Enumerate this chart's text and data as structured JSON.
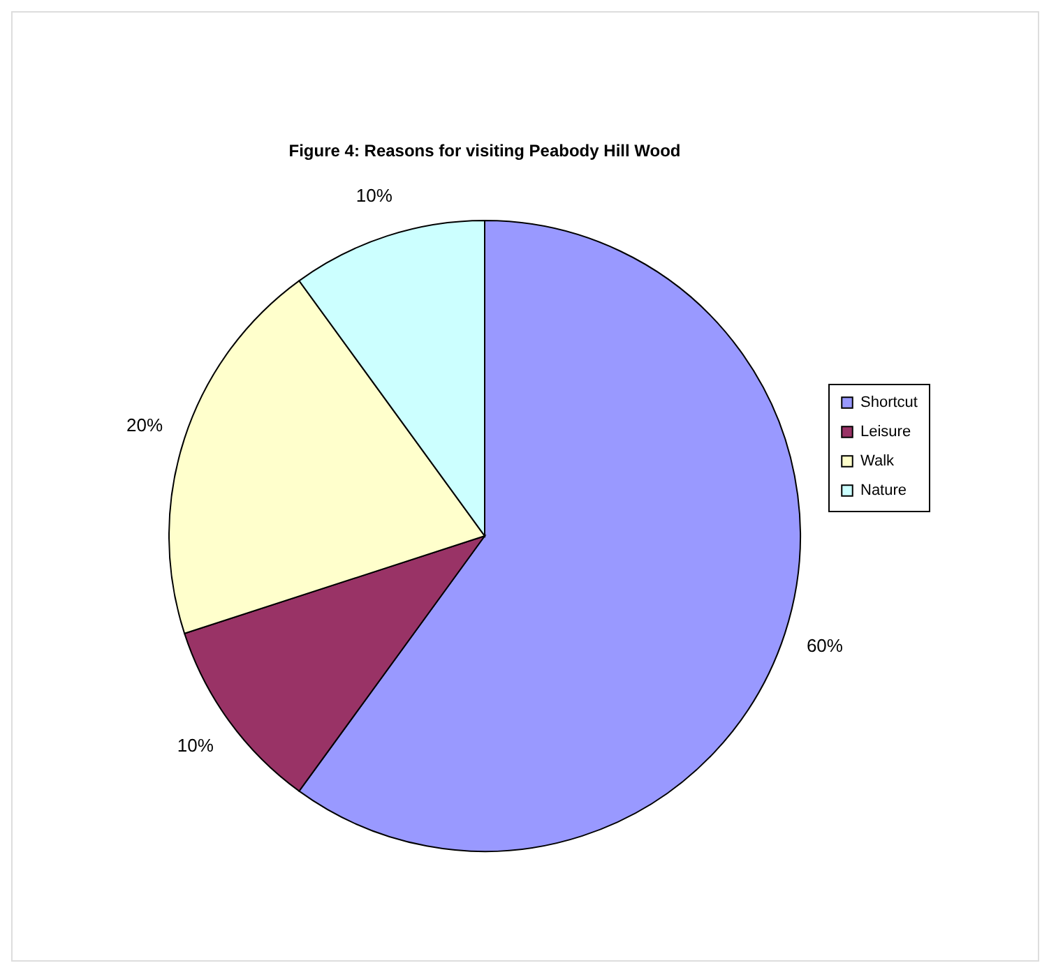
{
  "chart_data": {
    "type": "pie",
    "title": "Figure 4: Reasons for visiting Peabody Hill Wood",
    "categories": [
      "Shortcut",
      "Leisure",
      "Walk",
      "Nature"
    ],
    "values": [
      60,
      10,
      20,
      10
    ],
    "colors": [
      "#9999ff",
      "#993366",
      "#ffffcc",
      "#ccffff"
    ],
    "value_labels": [
      "60%",
      "10%",
      "20%",
      "10%"
    ],
    "legend": "right"
  }
}
